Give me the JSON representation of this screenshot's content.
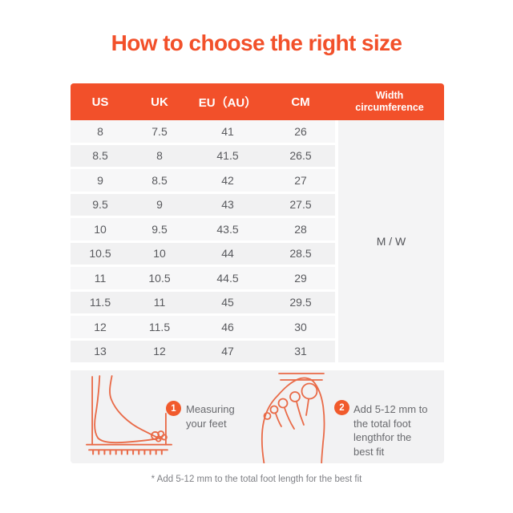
{
  "page": {
    "title": "How to choose the right size",
    "footnote": "* Add 5-12 mm to the total foot length for the best fit"
  },
  "colors": {
    "accent": "#F2502A",
    "badge": "#F15A2C",
    "illustration_stroke": "#E96A47",
    "row_light": "#F7F7F8",
    "row_dark": "#F1F1F2",
    "body_text": "#595A5E"
  },
  "table": {
    "headers": [
      "US",
      "UK",
      "EU（AU）",
      "CM"
    ],
    "width_header": "Width circumference",
    "width_value": "M / W",
    "rows": [
      [
        "8",
        "7.5",
        "41",
        "26"
      ],
      [
        "8.5",
        "8",
        "41.5",
        "26.5"
      ],
      [
        "9",
        "8.5",
        "42",
        "27"
      ],
      [
        "9.5",
        "9",
        "43",
        "27.5"
      ],
      [
        "10",
        "9.5",
        "43.5",
        "28"
      ],
      [
        "10.5",
        "10",
        "44",
        "28.5"
      ],
      [
        "11",
        "10.5",
        "44.5",
        "29"
      ],
      [
        "11.5",
        "11",
        "45",
        "29.5"
      ],
      [
        "12",
        "11.5",
        "46",
        "30"
      ],
      [
        "13",
        "12",
        "47",
        "31"
      ]
    ]
  },
  "steps": [
    {
      "number": "1",
      "text": "Measuring your feet"
    },
    {
      "number": "2",
      "text": "Add 5-12 mm to the total foot lengthfor the best fit"
    }
  ],
  "icons": {
    "foot_side": "foot-side-ruler-icon",
    "foot_top": "foot-top-measure-icon"
  }
}
